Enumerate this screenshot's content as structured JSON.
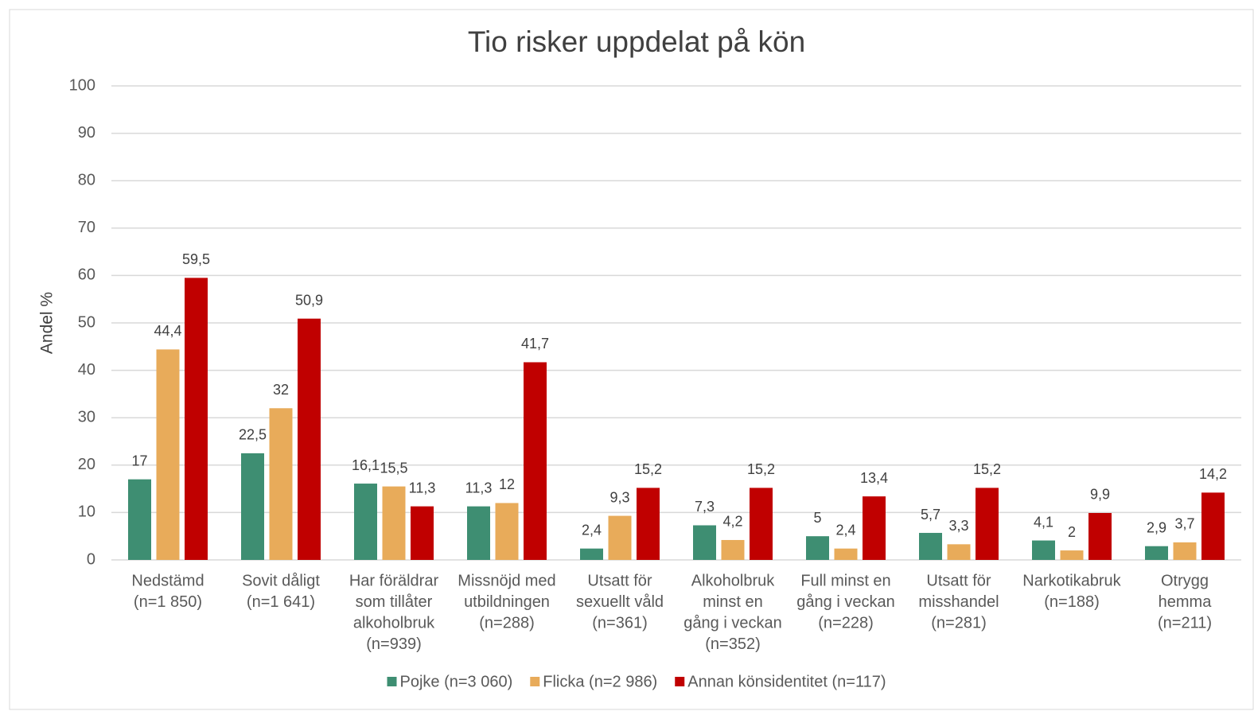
{
  "chart_data": {
    "type": "bar",
    "title": "Tio risker uppdelat på kön",
    "y_axis_label": "Andel %",
    "categories": [
      [
        "Nedstämd",
        "(n=1 850)"
      ],
      [
        "Sovit dåligt",
        "(n=1 641)"
      ],
      [
        "Har föräldrar",
        "som tillåter",
        "alkoholbruk",
        "(n=939)"
      ],
      [
        "Missnöjd med",
        "utbildningen",
        "(n=288)"
      ],
      [
        "Utsatt för",
        "sexuellt våld",
        "(n=361)"
      ],
      [
        "Alkoholbruk",
        "minst en",
        "gång i veckan",
        "(n=352)"
      ],
      [
        "Full minst en",
        "gång i veckan",
        "(n=228)"
      ],
      [
        "Utsatt för",
        "misshandel",
        "(n=281)"
      ],
      [
        "Narkotikabruk",
        "(n=188)"
      ],
      [
        "Otrygg",
        "hemma",
        "(n=211)"
      ]
    ],
    "series": [
      {
        "name": "Pojke (n=3 060)",
        "color": "#3e8e72",
        "values": [
          17,
          22.5,
          16.1,
          11.3,
          2.4,
          7.3,
          5,
          5.7,
          4.1,
          2.9
        ],
        "value_labels": [
          "17",
          "22,5",
          "16,1",
          "11,3",
          "2,4",
          "7,3",
          "5",
          "5,7",
          "4,1",
          "2,9"
        ]
      },
      {
        "name": "Flicka (n=2 986)",
        "color": "#e8ab5a",
        "values": [
          44.4,
          32,
          15.5,
          12,
          9.3,
          4.2,
          2.4,
          3.3,
          2,
          3.7
        ],
        "value_labels": [
          "44,4",
          "32",
          "15,5",
          "12",
          "9,3",
          "4,2",
          "2,4",
          "3,3",
          "2",
          "3,7"
        ]
      },
      {
        "name": "Annan könsidentitet (n=117)",
        "color": "#c00000",
        "values": [
          59.5,
          50.9,
          11.3,
          41.7,
          15.2,
          15.2,
          13.4,
          15.2,
          9.9,
          14.2
        ],
        "value_labels": [
          "59,5",
          "50,9",
          "11,3",
          "41,7",
          "15,2",
          "15,2",
          "13,4",
          "15,2",
          "9,9",
          "14,2"
        ]
      }
    ],
    "ylim": [
      0,
      100
    ],
    "yticks": [
      0,
      10,
      20,
      30,
      40,
      50,
      60,
      70,
      80,
      90,
      100
    ],
    "grid": true,
    "legend": "bottom"
  }
}
